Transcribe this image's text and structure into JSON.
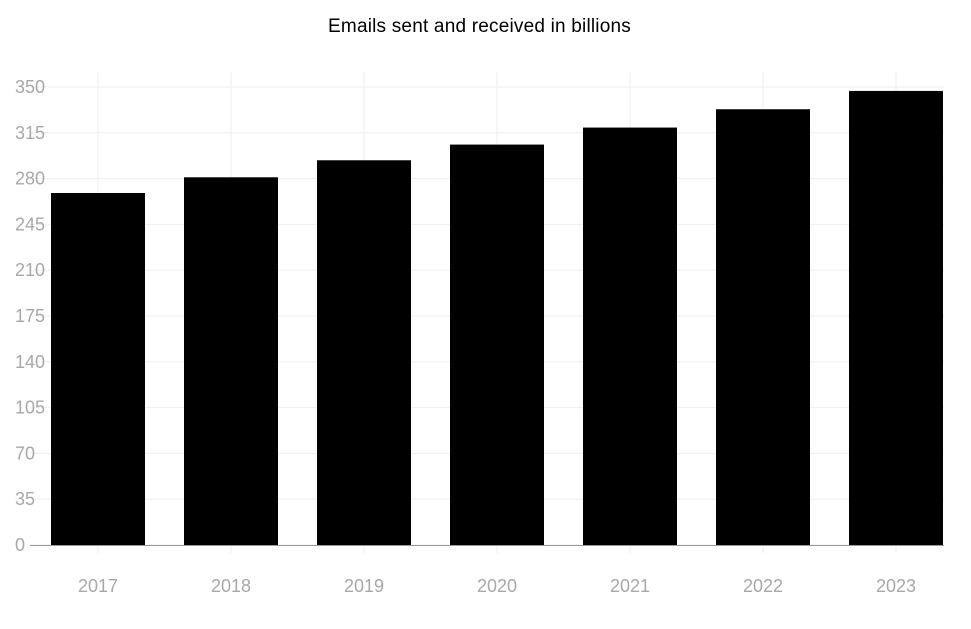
{
  "chart_data": {
    "type": "bar",
    "title": "Emails sent and received in billions",
    "xlabel": "",
    "ylabel": "",
    "categories": [
      "2017",
      "2018",
      "2019",
      "2020",
      "2021",
      "2022",
      "2023"
    ],
    "values": [
      269,
      281,
      294,
      306,
      319,
      333,
      347
    ],
    "ylim": [
      0,
      350
    ],
    "yticks": [
      "0",
      "35",
      "70",
      "105",
      "140",
      "175",
      "210",
      "245",
      "280",
      "315",
      "350"
    ],
    "grid": true,
    "legend": "none",
    "colors": {
      "bar": "#000000",
      "grid": "#eeeeee",
      "axis": "#999999",
      "tick_text": "#a8a8a8",
      "title": "#000000"
    }
  }
}
